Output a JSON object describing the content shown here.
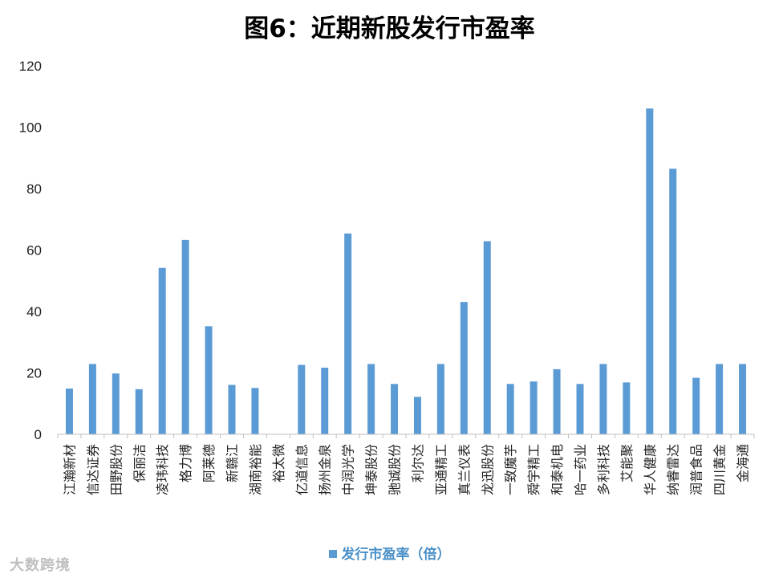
{
  "chart_data": {
    "type": "bar",
    "title": "图6：近期新股发行市盈率",
    "categories": [
      "江瀚新材",
      "信达证券",
      "田野股份",
      "保丽洁",
      "凌玮科技",
      "格力博",
      "阿莱德",
      "新赣江",
      "湖南裕能",
      "裕太微",
      "亿道信息",
      "扬州金泉",
      "中润光学",
      "坤泰股份",
      "驰诚股份",
      "利尔达",
      "亚通精工",
      "真兰仪表",
      "龙迅股份",
      "一致魔芋",
      "舜宇精工",
      "和泰机电",
      "哈一药业",
      "多利科技",
      "艾能聚",
      "华人健康",
      "纳睿雷达",
      "润普食品",
      "四川黄金",
      "金海通"
    ],
    "series": [
      {
        "name": "发行市盈率（倍）",
        "values": [
          14.9,
          22.9,
          19.8,
          14.7,
          54.2,
          63.3,
          35.2,
          16.1,
          15.1,
          0,
          22.6,
          21.7,
          65.4,
          22.9,
          16.4,
          12.2,
          22.9,
          43.1,
          62.9,
          16.4,
          17.2,
          21.2,
          16.4,
          22.9,
          16.9,
          106.1,
          86.5,
          18.4,
          22.9,
          22.9
        ]
      }
    ],
    "ylim": [
      0,
      120
    ],
    "yticks": [
      0,
      20,
      40,
      60,
      80,
      100,
      120
    ],
    "grid": false,
    "legend_position": "bottom",
    "bar_color": "#5b9bd5"
  },
  "watermark": "大数跨境"
}
